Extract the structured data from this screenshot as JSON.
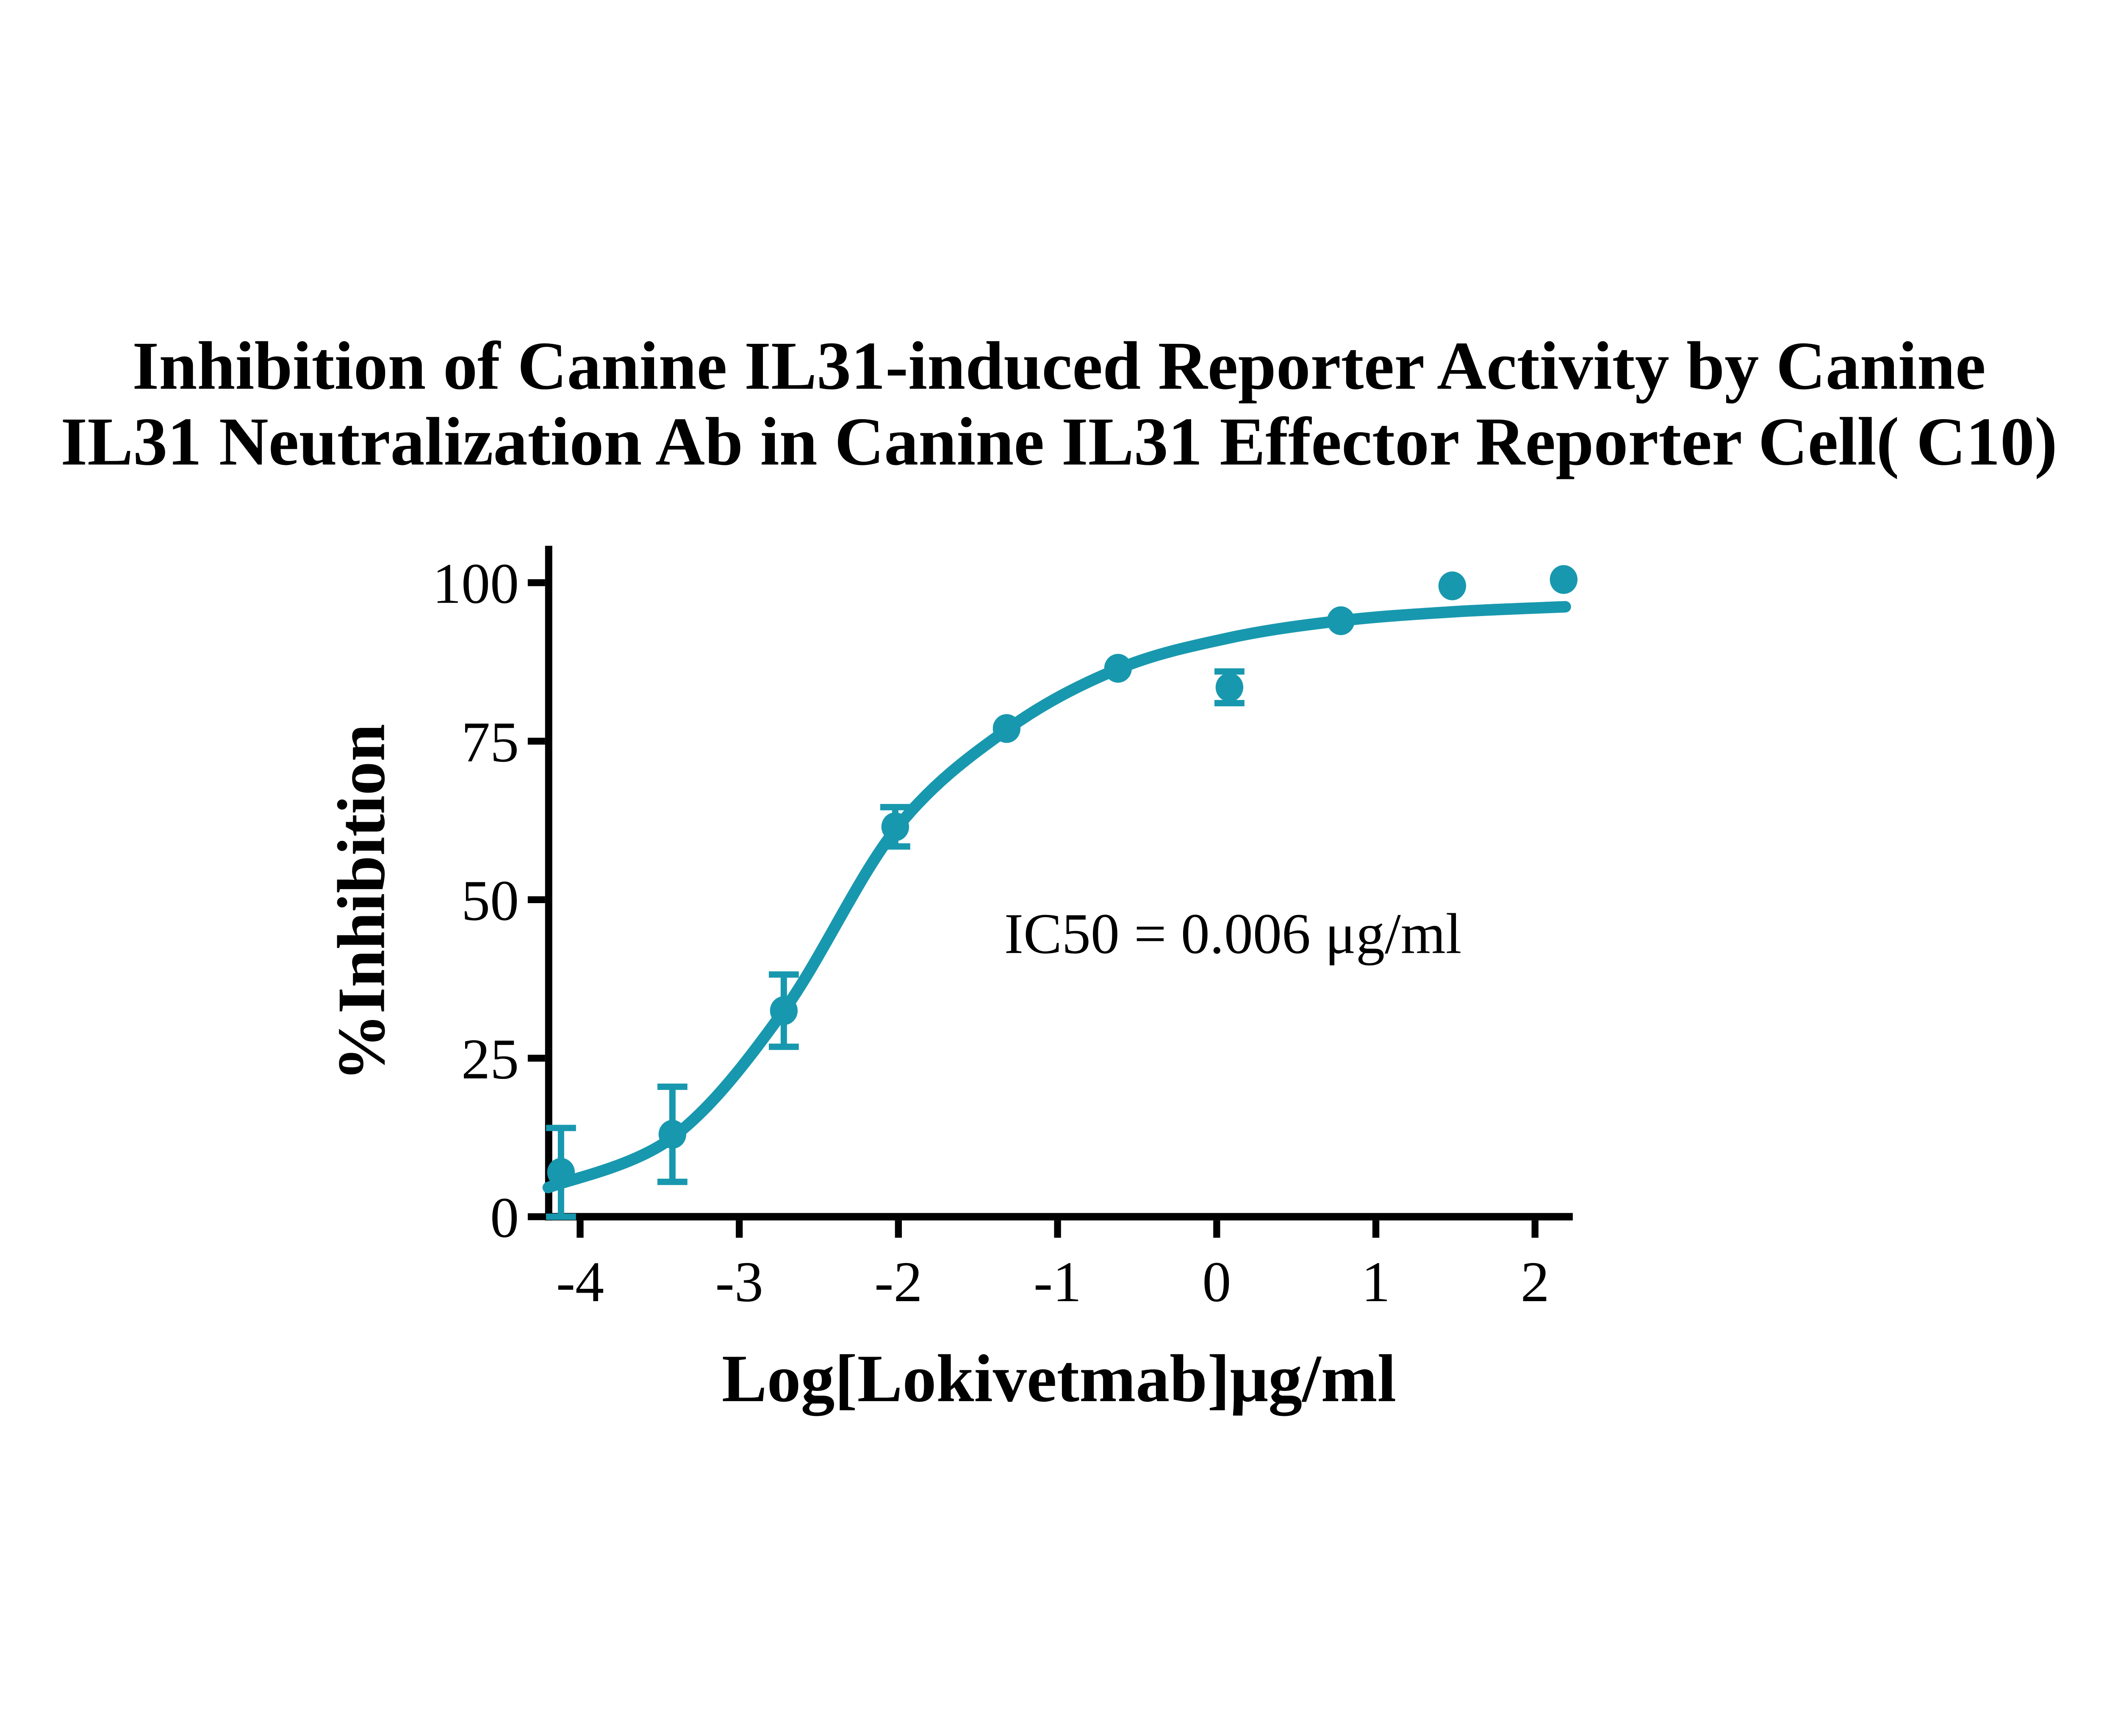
{
  "title": {
    "line1": "Inhibition of Canine IL31-induced Reporter Activity by Canine",
    "line2": "IL31 Neutralization Ab in Canine IL31 Effector Reporter Cell( C10)"
  },
  "colors": {
    "series": "#1898AE",
    "axis": "#000000",
    "text": "#000000",
    "background": "#FFFFFF"
  },
  "chart_data": {
    "type": "scatter",
    "title": "Inhibition of Canine IL31-induced Reporter Activity by Canine IL31 Neutralization Ab in Canine IL31 Effector Reporter Cell( C10)",
    "xlabel": "Log[Lokivetmab]μg/ml",
    "ylabel": "%Inhibition",
    "xlim": [
      -4.22,
      2.24
    ],
    "ylim": [
      0,
      105.5
    ],
    "x_ticks": [
      -4,
      -3,
      -2,
      -1,
      0,
      1,
      2
    ],
    "y_ticks": [
      0,
      25,
      50,
      75,
      100
    ],
    "grid": false,
    "legend": false,
    "annotation": {
      "text": "IC50 = 0.006 μg/ml",
      "ic50_ug_ml": 0.006
    },
    "series": [
      {
        "marker": "filled-circle",
        "x": [
          -4.12,
          -3.42,
          -2.72,
          -2.02,
          -1.32,
          -0.62,
          0.08,
          0.78,
          1.48,
          2.18
        ],
        "y": [
          7.0,
          13.0,
          32.5,
          61.5,
          77.0,
          86.5,
          83.5,
          94.0,
          99.5,
          100.5
        ],
        "y_err": [
          7.0,
          7.5,
          5.7,
          3.1,
          0,
          0,
          2.5,
          0,
          0,
          0
        ]
      }
    ],
    "fit_curve": {
      "type": "sigmoidal-dose-response",
      "points": [
        [
          -4.2,
          4.6
        ],
        [
          -3.42,
          12.5
        ],
        [
          -2.72,
          32.5
        ],
        [
          -2.02,
          61.0
        ],
        [
          -1.32,
          76.8
        ],
        [
          -0.62,
          86.4
        ],
        [
          0.08,
          91.3
        ],
        [
          0.78,
          94.0
        ],
        [
          1.48,
          95.4
        ],
        [
          2.19,
          96.2
        ]
      ]
    }
  }
}
